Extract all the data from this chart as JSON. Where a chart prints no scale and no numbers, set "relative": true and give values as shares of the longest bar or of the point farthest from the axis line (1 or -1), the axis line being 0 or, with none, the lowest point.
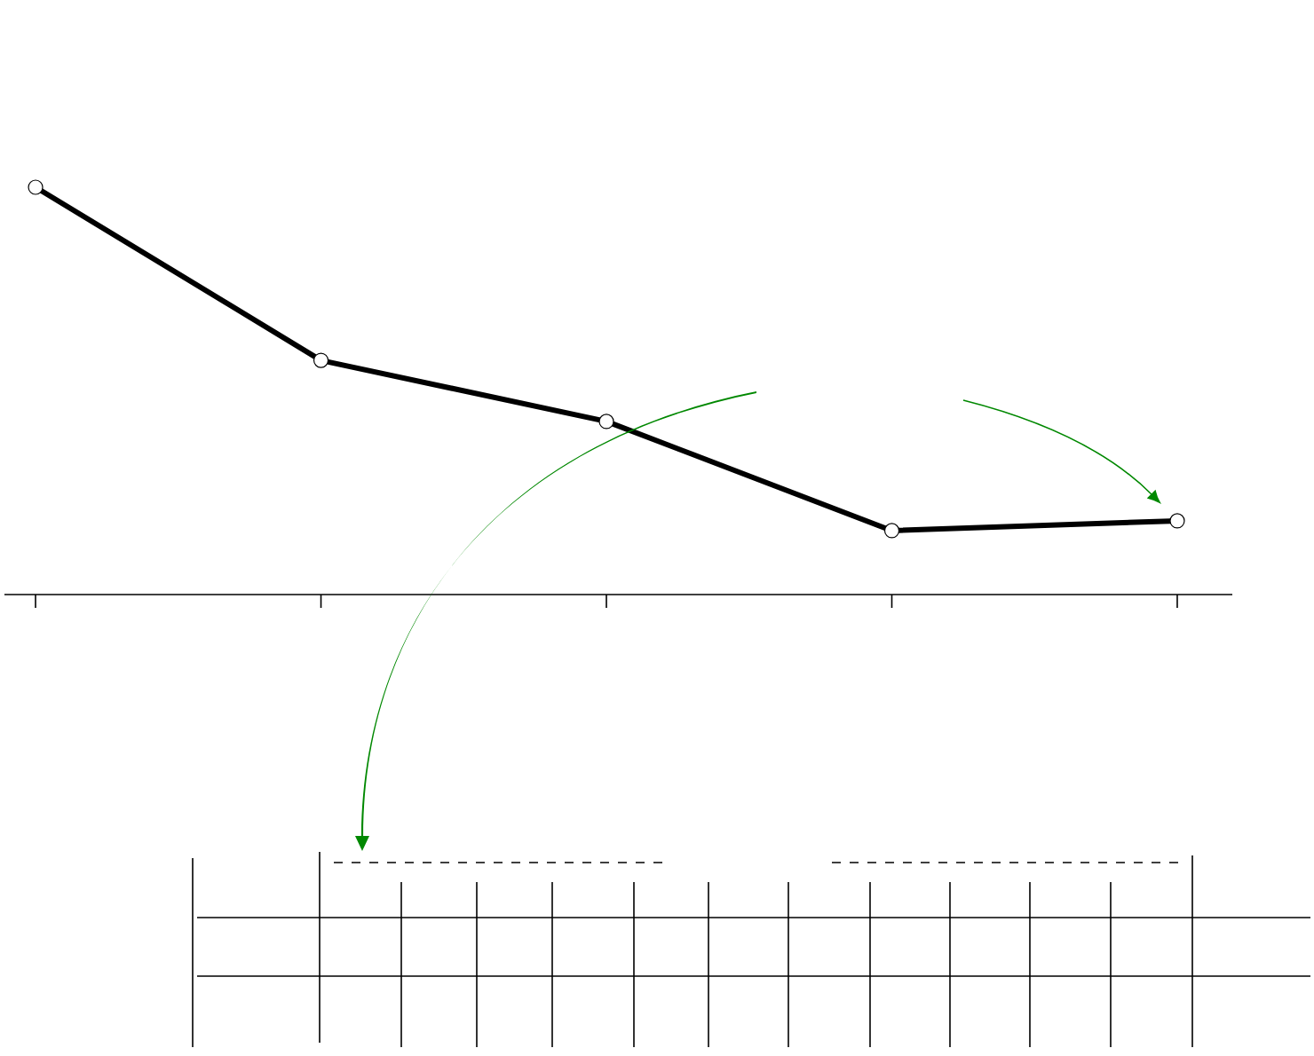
{
  "chart_data": {
    "type": "line",
    "relative": true,
    "categories": [
      null,
      null,
      null,
      null,
      null
    ],
    "values": [
      1,
      0.575,
      0.425,
      0.157,
      0.181
    ],
    "color": "#000000",
    "marker": "circle"
  }
}
